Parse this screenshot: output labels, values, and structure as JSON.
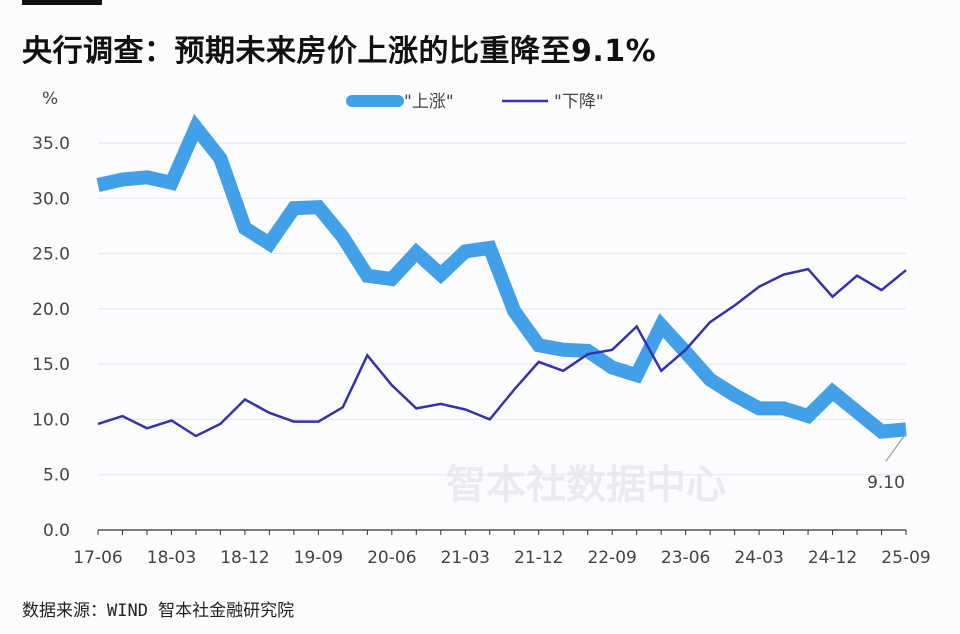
{
  "title": "央行调查：预期未来房价上涨的比重降至9.1%",
  "source": "数据来源：WIND 智本社金融研究院",
  "watermark": "智本社数据中心",
  "chart_data": {
    "type": "line",
    "title": "央行调查：预期未来房价上涨的比重降至9.1%",
    "ylabel": "%",
    "ylim": [
      0,
      35
    ],
    "yticks": [
      "0.0",
      "5.0",
      "10.0",
      "15.0",
      "20.0",
      "25.0",
      "30.0",
      "35.0"
    ],
    "xticks": [
      "17-06",
      "18-03",
      "18-12",
      "19-09",
      "20-06",
      "21-03",
      "21-12",
      "22-09",
      "23-06",
      "24-03",
      "24-12",
      "25-09"
    ],
    "grid": true,
    "legend_position": "top-center",
    "annotation": "9.10",
    "series": [
      {
        "name": "\"上涨\"",
        "color": "#42a0e8",
        "values": [
          31.2,
          31.7,
          31.9,
          31.4,
          36.4,
          33.6,
          27.3,
          25.9,
          29.1,
          29.2,
          26.5,
          23.0,
          22.7,
          25.1,
          23.1,
          25.2,
          25.5,
          19.8,
          16.7,
          16.3,
          16.2,
          14.7,
          14.0,
          18.5,
          16.1,
          13.6,
          12.2,
          11.0,
          11.0,
          10.3,
          12.5,
          10.7,
          8.9,
          9.1
        ]
      },
      {
        "name": "\"下降\"",
        "color": "#3333b0",
        "values": [
          9.6,
          10.3,
          9.2,
          9.9,
          8.5,
          9.6,
          11.8,
          10.6,
          9.8,
          9.8,
          11.1,
          15.8,
          13.1,
          11.0,
          11.4,
          10.9,
          10.0,
          12.7,
          15.2,
          14.4,
          15.9,
          16.3,
          18.4,
          14.4,
          16.3,
          18.8,
          20.3,
          22.0,
          23.1,
          23.6,
          21.1,
          23.0,
          21.7,
          23.5
        ]
      }
    ]
  }
}
